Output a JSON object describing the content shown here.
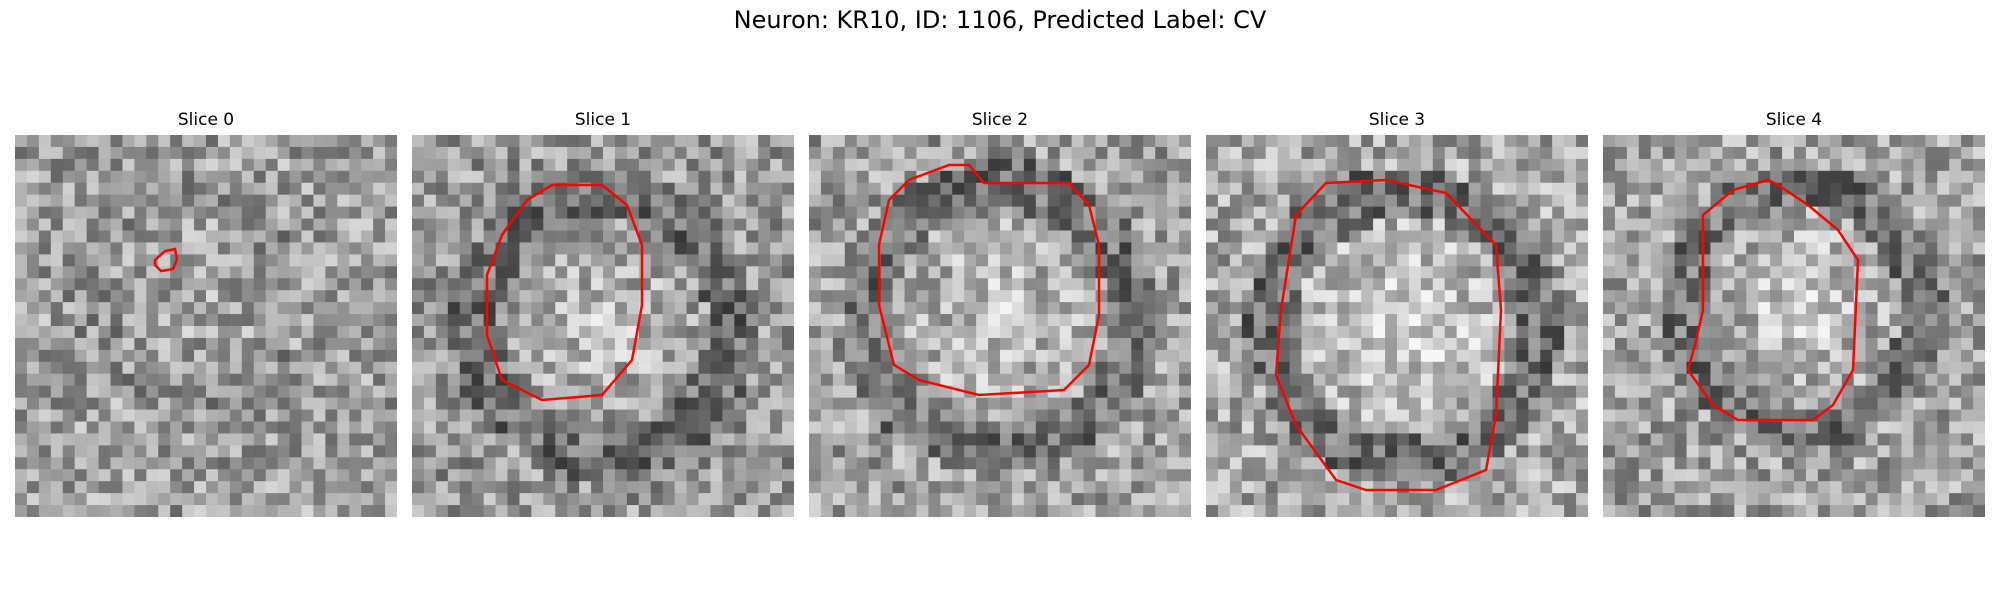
{
  "figure": {
    "title": "Neuron: KR10, ID: 1106, Predicted Label: CV",
    "contour_color": "#ff0000"
  },
  "panels": [
    {
      "title": "Slice 0",
      "image": "noisy grayscale EM patch, faint dark blob near center",
      "contour": "small"
    },
    {
      "title": "Slice 1",
      "image": "grayscale EM patch with round vesicle",
      "contour": "vesicle-outline"
    },
    {
      "title": "Slice 2",
      "image": "grayscale EM patch with round vesicle",
      "contour": "vesicle-outline"
    },
    {
      "title": "Slice 3",
      "image": "grayscale EM patch with bright round vesicle",
      "contour": "vesicle-outline"
    },
    {
      "title": "Slice 4",
      "image": "grayscale EM patch with vesicle",
      "contour": "vesicle-outline"
    }
  ]
}
